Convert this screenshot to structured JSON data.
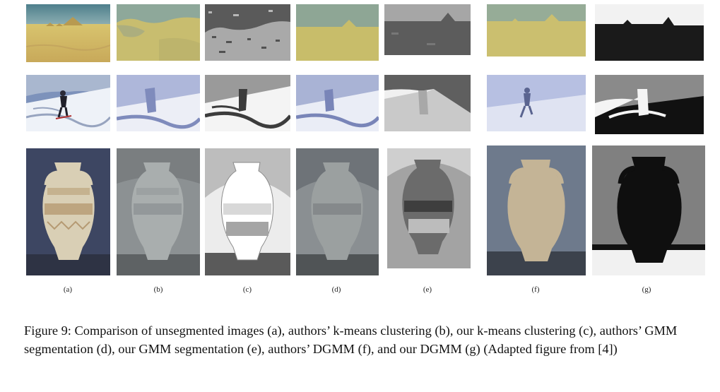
{
  "figure": {
    "labels": [
      "(a)",
      "(b)",
      "(c)",
      "(d)",
      "(e)",
      "(f)",
      "(g)"
    ],
    "caption": "Figure 9: Comparison of unsegmented images (a), authors’ k-means clustering (b), our k-means clustering (c), authors’ GMM segmentation (d), our GMM segmentation (e), authors’ DGMM (f), and our DGMM (g) (Adapted figure from [4])"
  }
}
